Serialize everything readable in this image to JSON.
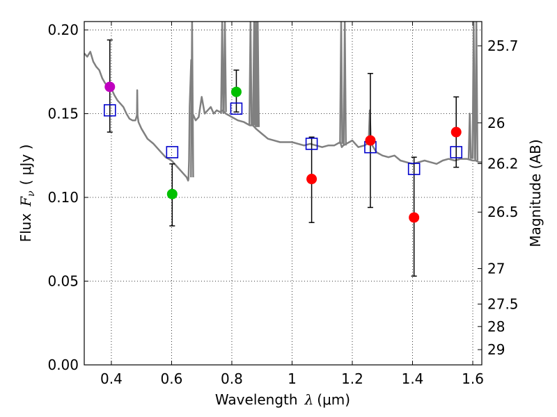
{
  "chart_data": {
    "type": "scatter",
    "xlabel_text": "Wavelength",
    "xlabel_symbol": "λ",
    "xlabel_unit": "(μm)",
    "ylabel_text": "Flux",
    "ylabel_symbol": "F",
    "ylabel_sub": "ν",
    "ylabel_unit": "( μJy )",
    "y2label": "Magnitude (AB)",
    "xlim": [
      0.31,
      1.63
    ],
    "ylim": [
      0.0,
      0.205
    ],
    "grid": true,
    "x_ticks": [
      0.4,
      0.6,
      0.8,
      1.0,
      1.2,
      1.4,
      1.6
    ],
    "x_tick_labels": [
      "0.4",
      "0.6",
      "0.8",
      "1",
      "1.2",
      "1.4",
      "1.6"
    ],
    "y_ticks": [
      0.0,
      0.05,
      0.1,
      0.15,
      0.2
    ],
    "y_tick_labels": [
      "0.00",
      "0.05",
      "0.10",
      "0.15",
      "0.20"
    ],
    "mag_ticks": [
      {
        "label": "25.7",
        "flux": 0.1905
      },
      {
        "label": "26",
        "flux": 0.1445
      },
      {
        "label": "26.2",
        "flux": 0.1202
      },
      {
        "label": "26.5",
        "flux": 0.0912
      },
      {
        "label": "27",
        "flux": 0.0575
      },
      {
        "label": "27.5",
        "flux": 0.0363
      },
      {
        "label": "28",
        "flux": 0.0229
      },
      {
        "label": "29",
        "flux": 0.0091
      }
    ],
    "series": [
      {
        "name": "model-spectrum",
        "kind": "line",
        "color": "#808080",
        "x": [
          0.31,
          0.32,
          0.33,
          0.34,
          0.35,
          0.36,
          0.37,
          0.38,
          0.39,
          0.4,
          0.41,
          0.42,
          0.43,
          0.44,
          0.45,
          0.46,
          0.47,
          0.48,
          0.485,
          0.486,
          0.487,
          0.49,
          0.5,
          0.52,
          0.54,
          0.56,
          0.58,
          0.6,
          0.62,
          0.64,
          0.65,
          0.655,
          0.656,
          0.658,
          0.66,
          0.665,
          0.67,
          0.68,
          0.69,
          0.7,
          0.71,
          0.72,
          0.73,
          0.74,
          0.75,
          0.76,
          0.77,
          0.78,
          0.79,
          0.8,
          0.82,
          0.84,
          0.86,
          0.87,
          0.88,
          0.9,
          0.92,
          0.94,
          0.96,
          0.98,
          1.0,
          1.02,
          1.04,
          1.06,
          1.08,
          1.1,
          1.12,
          1.14,
          1.15,
          1.16,
          1.165,
          1.17,
          1.18,
          1.19,
          1.2,
          1.22,
          1.24,
          1.26,
          1.28,
          1.3,
          1.32,
          1.34,
          1.36,
          1.38,
          1.4,
          1.42,
          1.44,
          1.46,
          1.48,
          1.5,
          1.52,
          1.54,
          1.56,
          1.58,
          1.6,
          1.61,
          1.62,
          1.63
        ],
        "y": [
          0.186,
          0.184,
          0.187,
          0.181,
          0.178,
          0.176,
          0.171,
          0.168,
          0.166,
          0.165,
          0.161,
          0.158,
          0.156,
          0.154,
          0.15,
          0.147,
          0.146,
          0.146,
          0.149,
          0.164,
          0.149,
          0.145,
          0.141,
          0.135,
          0.132,
          0.128,
          0.124,
          0.122,
          0.118,
          0.114,
          0.112,
          0.11,
          0.111,
          0.122,
          0.154,
          0.182,
          0.15,
          0.146,
          0.148,
          0.16,
          0.15,
          0.152,
          0.154,
          0.15,
          0.152,
          0.151,
          0.152,
          0.15,
          0.149,
          0.148,
          0.146,
          0.145,
          0.143,
          0.143,
          0.141,
          0.138,
          0.135,
          0.134,
          0.133,
          0.133,
          0.133,
          0.132,
          0.131,
          0.132,
          0.131,
          0.13,
          0.131,
          0.131,
          0.132,
          0.133,
          0.13,
          0.131,
          0.132,
          0.133,
          0.134,
          0.13,
          0.131,
          0.133,
          0.127,
          0.125,
          0.124,
          0.125,
          0.122,
          0.121,
          0.12,
          0.121,
          0.122,
          0.121,
          0.12,
          0.122,
          0.123,
          0.122,
          0.123,
          0.123,
          0.122,
          0.122,
          0.121,
          0.121
        ]
      },
      {
        "name": "model-spectrum-emission-lines",
        "kind": "spikes",
        "color": "#808080",
        "x": [
          0.668,
          0.768,
          0.777,
          0.862,
          0.874,
          0.877,
          0.883,
          0.886,
          1.163,
          1.175,
          1.258,
          1.59,
          1.603,
          1.612
        ],
        "base": [
          0.112,
          0.15,
          0.151,
          0.143,
          0.143,
          0.143,
          0.142,
          0.142,
          0.132,
          0.131,
          0.133,
          0.123,
          0.123,
          0.122
        ],
        "peak": [
          0.205,
          0.205,
          0.205,
          0.205,
          0.205,
          0.205,
          0.205,
          0.205,
          0.205,
          0.205,
          0.152,
          0.15,
          0.205,
          0.205
        ]
      },
      {
        "name": "observed-photometry",
        "kind": "points",
        "x": [
          0.395,
          0.602,
          0.815,
          1.065,
          1.26,
          1.405,
          1.545
        ],
        "y": [
          0.166,
          0.102,
          0.163,
          0.111,
          0.134,
          0.088,
          0.139
        ],
        "err_low": [
          0.139,
          0.083,
          0.151,
          0.085,
          0.094,
          0.053,
          0.118
        ],
        "err_high": [
          0.194,
          0.12,
          0.176,
          0.136,
          0.174,
          0.124,
          0.16
        ],
        "colors": [
          "#bf00bf",
          "#00c000",
          "#00c000",
          "#ff0000",
          "#ff0000",
          "#ff0000",
          "#ff0000"
        ]
      },
      {
        "name": "model-photometry",
        "kind": "squares",
        "color": "#0000cc",
        "x": [
          0.395,
          0.602,
          0.815,
          1.065,
          1.26,
          1.405,
          1.545
        ],
        "y": [
          0.152,
          0.127,
          0.153,
          0.132,
          0.13,
          0.117,
          0.127
        ]
      }
    ]
  }
}
